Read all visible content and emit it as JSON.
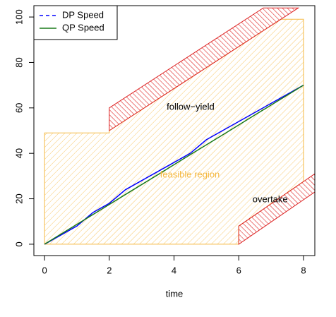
{
  "chart_data": {
    "type": "line",
    "x_label": "time",
    "x": [
      0,
      0.5,
      1,
      1.5,
      2,
      2.5,
      3,
      3.5,
      4,
      4.5,
      5,
      5.5,
      6,
      6.5,
      7,
      7.5,
      8
    ],
    "series": [
      {
        "name": "DP Speed",
        "color": "#0000ff",
        "dashed": true,
        "values": [
          0,
          4,
          8,
          14,
          18,
          24,
          28,
          32,
          36,
          40,
          46,
          50,
          54,
          58,
          62,
          66,
          70
        ]
      },
      {
        "name": "QP Speed",
        "color": "#1a7a1a",
        "dashed": false,
        "values": [
          0,
          4.4,
          8.75,
          13.1,
          17.5,
          21.9,
          26.25,
          30.6,
          35,
          39.4,
          43.75,
          48.1,
          52.5,
          56.9,
          61.25,
          65.6,
          70
        ]
      }
    ],
    "regions": [
      {
        "label": "feasible region",
        "color": "#f5b942",
        "angle": 45,
        "label_x": 4.49,
        "label_y": 30.4,
        "x": [
          0,
          0,
          2,
          2,
          7.3,
          8,
          8,
          6,
          6
        ],
        "y": [
          0,
          49,
          49,
          50,
          99,
          99,
          27.6,
          8,
          0
        ]
      },
      {
        "label": "follow−yield",
        "color": "#dd2222",
        "angle": -45,
        "label_x": 4.51,
        "label_y": 60.2,
        "x": [
          2,
          2,
          6.76,
          7.84
        ],
        "y": [
          50,
          60,
          104,
          104
        ]
      },
      {
        "label": "overtake",
        "color": "#dd2222",
        "angle": -45,
        "label_x": 6.97,
        "label_y": 19.6,
        "x": [
          6,
          6,
          8.35,
          8.35
        ],
        "y": [
          0,
          8,
          31,
          23
        ]
      }
    ],
    "xlim": [
      -0.33,
      8.35
    ],
    "ylim": [
      -5,
      105
    ],
    "xticks": [
      0,
      2,
      4,
      6,
      8
    ],
    "yticks": [
      0,
      20,
      40,
      60,
      80,
      100
    ],
    "legend": "top-left"
  }
}
